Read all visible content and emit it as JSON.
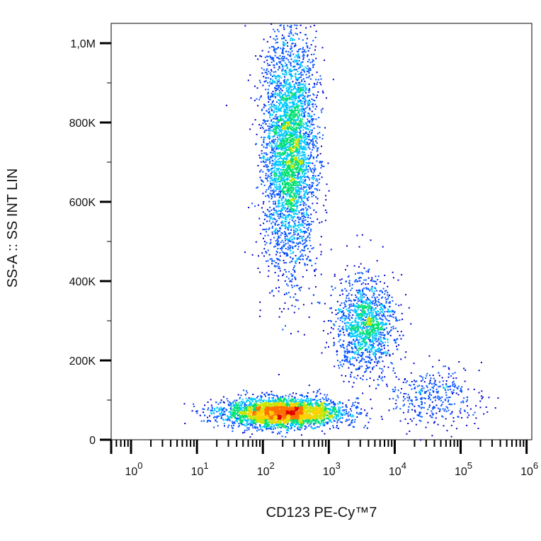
{
  "chart_data": {
    "type": "scatter",
    "subtype": "flow-cytometry-density-dot-plot",
    "xlabel": "CD123 PE-Cy™7",
    "ylabel": "SS-A :: SS INT LIN",
    "x_scale": "log",
    "y_scale": "linear",
    "xlim": [
      0.5,
      1200000
    ],
    "ylim": [
      0,
      1050000
    ],
    "x_ticks": [
      {
        "value": 1,
        "base": "10",
        "exp": "0"
      },
      {
        "value": 10,
        "base": "10",
        "exp": "1"
      },
      {
        "value": 100,
        "base": "10",
        "exp": "2"
      },
      {
        "value": 1000,
        "base": "10",
        "exp": "3"
      },
      {
        "value": 10000,
        "base": "10",
        "exp": "4"
      },
      {
        "value": 100000,
        "base": "10",
        "exp": "5"
      },
      {
        "value": 1000000,
        "base": "10",
        "exp": "6"
      }
    ],
    "y_ticks": [
      {
        "value": 0,
        "label": "0"
      },
      {
        "value": 200000,
        "label": "200K"
      },
      {
        "value": 400000,
        "label": "400K"
      },
      {
        "value": 600000,
        "label": "600K"
      },
      {
        "value": 800000,
        "label": "800K"
      },
      {
        "value": 1000000,
        "label": "1,0M"
      }
    ],
    "grid": false,
    "legend": "none",
    "color_scale": [
      "#0000cc",
      "#0050ff",
      "#00c8ff",
      "#00e070",
      "#c8e600",
      "#ffd000",
      "#ff7000",
      "#e00000"
    ],
    "populations": [
      {
        "x_center": 250,
        "y_center": 730000,
        "x_spread_decades": 0.2,
        "y_spread": 150000,
        "weight": 0.42,
        "density": "high"
      },
      {
        "x_center": 3500,
        "y_center": 290000,
        "x_spread_decades": 0.22,
        "y_spread": 60000,
        "weight": 0.16,
        "density": "medium"
      },
      {
        "x_center": 200,
        "y_center": 70000,
        "x_spread_decades": 0.45,
        "y_spread": 18000,
        "weight": 0.38,
        "density": "highest"
      },
      {
        "x_center": 40000,
        "y_center": 110000,
        "x_spread_decades": 0.35,
        "y_spread": 40000,
        "weight": 0.04,
        "density": "low"
      }
    ]
  }
}
